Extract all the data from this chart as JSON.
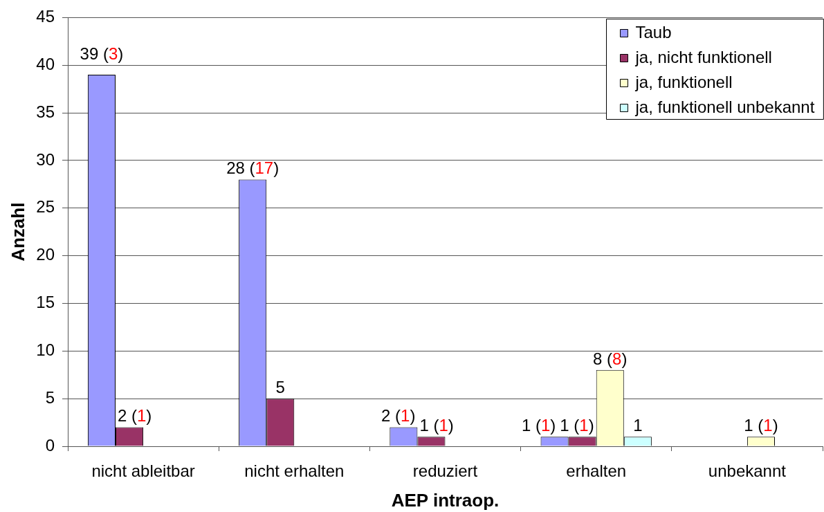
{
  "chart_data": {
    "type": "bar",
    "xlabel": "AEP intraop.",
    "ylabel": "Anzahl",
    "categories": [
      "nicht ableitbar",
      "nicht erhalten",
      "reduziert",
      "erhalten",
      "unbekannt"
    ],
    "series": [
      {
        "name": "Taub",
        "color": "#9999ff",
        "values": [
          39,
          28,
          2,
          1,
          null
        ],
        "value_labels": [
          "39 (3)",
          "28 (17)",
          "2 (1)",
          "1 (1)",
          null
        ]
      },
      {
        "name": "ja, nicht funktionell",
        "color": "#993366",
        "values": [
          2,
          5,
          1,
          1,
          null
        ],
        "value_labels": [
          "2 (1)",
          "5",
          "1 (1)",
          "1 (1)",
          null
        ]
      },
      {
        "name": "ja, funktionell",
        "color": "#ffffcc",
        "values": [
          null,
          null,
          null,
          8,
          1
        ],
        "value_labels": [
          null,
          null,
          null,
          "8 (8)",
          "1 (1)"
        ]
      },
      {
        "name": "ja, funktionell unbekannt",
        "color": "#ccffff",
        "values": [
          null,
          null,
          null,
          1,
          null
        ],
        "value_labels": [
          null,
          null,
          null,
          "1",
          null
        ]
      }
    ],
    "ylim": [
      0,
      45
    ],
    "yticks": [
      0,
      5,
      10,
      15,
      20,
      25,
      30,
      35,
      40,
      45
    ],
    "grid": "y",
    "legend": "top right"
  }
}
